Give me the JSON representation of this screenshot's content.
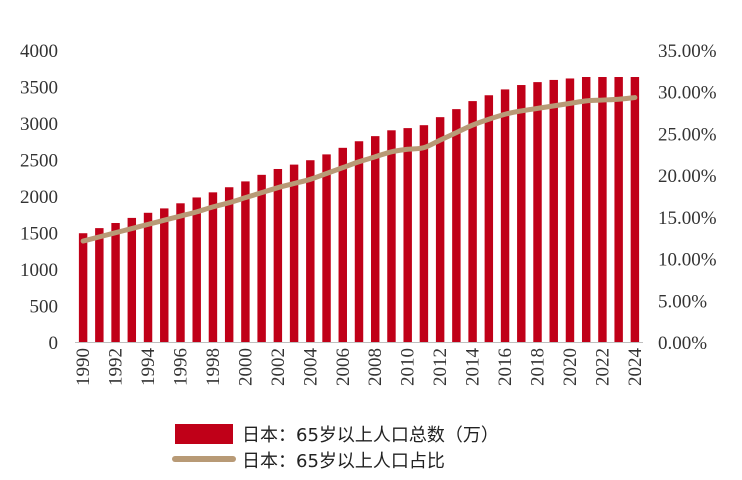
{
  "chart_data": {
    "type": "bar",
    "categories": [
      "1990",
      "1991",
      "1992",
      "1993",
      "1994",
      "1995",
      "1996",
      "1997",
      "1998",
      "1999",
      "2000",
      "2001",
      "2002",
      "2003",
      "2004",
      "2005",
      "2006",
      "2007",
      "2008",
      "2009",
      "2010",
      "2011",
      "2012",
      "2013",
      "2014",
      "2015",
      "2016",
      "2017",
      "2018",
      "2019",
      "2020",
      "2021",
      "2022",
      "2023",
      "2024"
    ],
    "x_tick_labels": [
      "1990",
      "1992",
      "1994",
      "1996",
      "1998",
      "2000",
      "2002",
      "2004",
      "2006",
      "2008",
      "2010",
      "2012",
      "2014",
      "2016",
      "2018",
      "2020",
      "2022",
      "2024"
    ],
    "series": [
      {
        "name": "日本：65岁以上人口总数（万）",
        "type": "bar",
        "axis": "left",
        "color": "#c00018",
        "values": [
          1490,
          1560,
          1630,
          1700,
          1770,
          1830,
          1900,
          1980,
          2050,
          2120,
          2200,
          2290,
          2370,
          2430,
          2490,
          2570,
          2660,
          2750,
          2820,
          2900,
          2930,
          2970,
          3080,
          3190,
          3300,
          3380,
          3460,
          3520,
          3560,
          3590,
          3610,
          3630,
          3630,
          3630,
          3630
        ]
      },
      {
        "name": "日本：65岁以上人口占比",
        "type": "line",
        "axis": "right",
        "color": "#b89a76",
        "values": [
          12.1,
          12.6,
          13.1,
          13.6,
          14.1,
          14.6,
          15.1,
          15.6,
          16.2,
          16.7,
          17.3,
          17.9,
          18.5,
          19.0,
          19.5,
          20.2,
          20.9,
          21.6,
          22.2,
          22.8,
          23.1,
          23.3,
          24.2,
          25.1,
          26.0,
          26.7,
          27.3,
          27.7,
          28.0,
          28.3,
          28.6,
          28.9,
          29.0,
          29.1,
          29.3
        ]
      }
    ],
    "y_left": {
      "min": 0,
      "max": 4000,
      "ticks": [
        "0",
        "500",
        "1000",
        "1500",
        "2000",
        "2500",
        "3000",
        "3500",
        "4000"
      ]
    },
    "y_right": {
      "min": 0,
      "max": 35,
      "ticks": [
        "0.00%",
        "5.00%",
        "10.00%",
        "15.00%",
        "20.00%",
        "25.00%",
        "30.00%",
        "35.00%"
      ]
    },
    "grid": false,
    "legend_position": "bottom-center"
  }
}
